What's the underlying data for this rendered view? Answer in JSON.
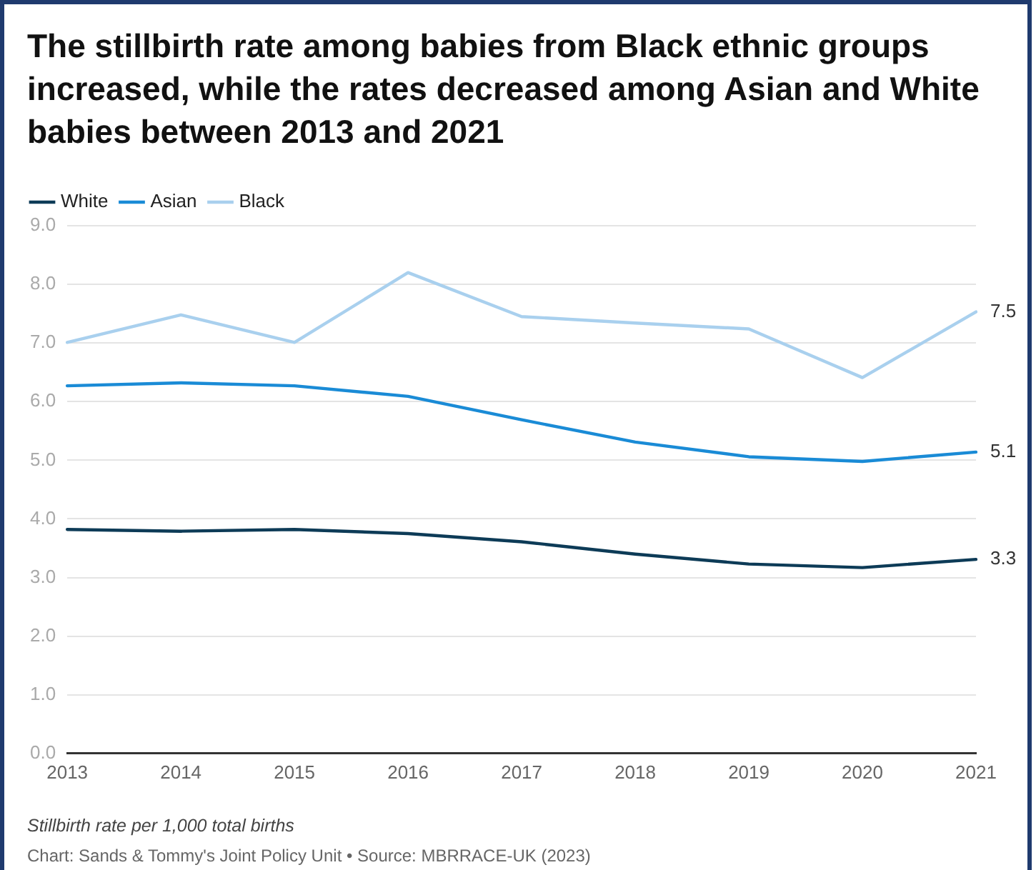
{
  "chart_data": {
    "type": "line",
    "title": "The stillbirth rate among babies from Black ethnic groups increased, while the rates decreased among Asian and White babies between 2013 and 2021",
    "categories": [
      "2013",
      "2014",
      "2015",
      "2016",
      "2017",
      "2018",
      "2019",
      "2020",
      "2021"
    ],
    "series": [
      {
        "name": "White",
        "color": "#0d3b57",
        "values": [
          3.82,
          3.79,
          3.82,
          3.75,
          3.61,
          3.4,
          3.23,
          3.17,
          3.31
        ],
        "value_labels": [
          null,
          null,
          null,
          null,
          null,
          null,
          null,
          null,
          "3.3"
        ]
      },
      {
        "name": "Asian",
        "color": "#1a8bd6",
        "values": [
          6.27,
          6.32,
          6.27,
          6.09,
          5.69,
          5.31,
          5.06,
          4.98,
          5.14
        ],
        "value_labels": [
          null,
          null,
          null,
          null,
          null,
          null,
          null,
          null,
          "5.1"
        ]
      },
      {
        "name": "Black",
        "color": "#a9d0ee",
        "values": [
          7.01,
          7.48,
          7.01,
          8.2,
          7.45,
          7.34,
          7.24,
          6.41,
          7.53
        ],
        "value_labels": [
          null,
          null,
          null,
          null,
          null,
          null,
          null,
          null,
          "7.5"
        ]
      }
    ],
    "ylim": [
      0,
      9
    ],
    "yticks": [
      {
        "value": 0,
        "label": "0.0"
      },
      {
        "value": 1,
        "label": "1.0"
      },
      {
        "value": 2,
        "label": "2.0"
      },
      {
        "value": 3,
        "label": "3.0"
      },
      {
        "value": 4,
        "label": "4.0"
      },
      {
        "value": 5,
        "label": "5.0"
      },
      {
        "value": 6,
        "label": "6.0"
      },
      {
        "value": 7,
        "label": "7.0"
      },
      {
        "value": 8,
        "label": "8.0"
      },
      {
        "value": 9,
        "label": "9.0"
      }
    ],
    "grid": "y",
    "legend": "top left",
    "marker": "none",
    "line_style": "solid",
    "annotations": [
      "Stillbirth rate per 1,000 total births",
      "Chart: Sands & Tommy's Joint Policy Unit • Source: MBRRACE-UK (2023)"
    ]
  }
}
